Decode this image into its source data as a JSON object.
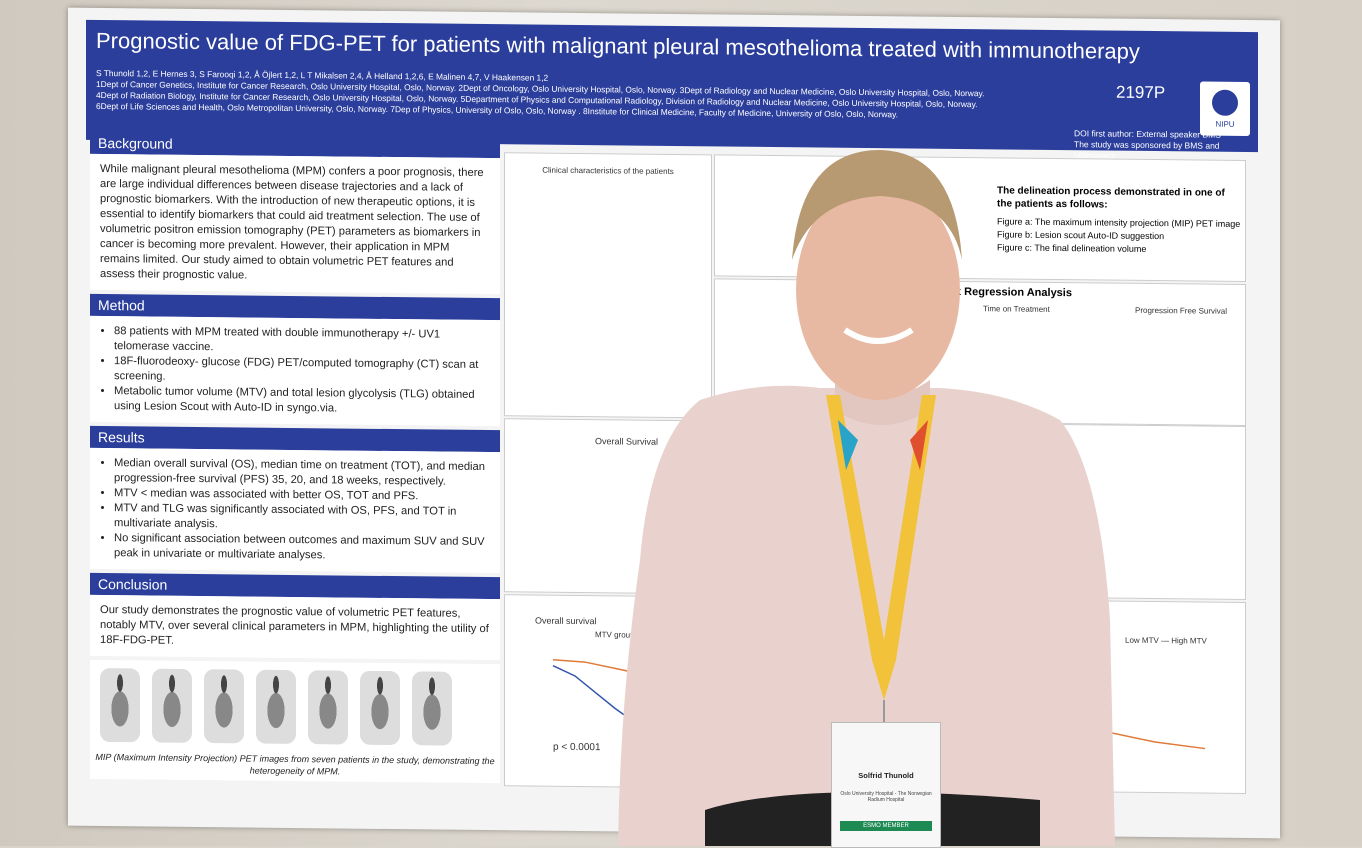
{
  "poster": {
    "title": "Prognostic value of FDG-PET for patients with malignant pleural mesothelioma treated with immunotherapy",
    "poster_id": "2197P",
    "logo_text": "NIPU",
    "authors": [
      "S Thunold 1,2, E Hernes 3, S Farooqi 1,2, Å Öjlert 1,2, L T Mikalsen 2,4, Å Helland 1,2,6, E Malinen 4,7, V Haakensen 1,2",
      "1Dept of Cancer Genetics, Institute for Cancer Research, Oslo University Hospital, Oslo, Norway. 2Dept of Oncology, Oslo University Hospital, Oslo, Norway. 3Dept of Radiology and Nuclear Medicine, Oslo University Hospital, Oslo, Norway.",
      "4Dept of Radiation Biology, Institute for Cancer Research, Oslo University Hospital, Oslo, Norway. 5Department of Physics and Computational Radiology, Division of Radiology and Nuclear Medicine, Oslo University Hospital, Oslo, Norway.",
      "6Dept of Life Sciences and Health, Oslo Metropolitan University, Oslo, Norway. 7Dep of Physics, University of Oslo, Oslo, Norway . 8Institute for Clinical Medicine, Faculty of Medicine, University of Oslo, Oslo, Norway."
    ],
    "doi_line1": "DOI first author: External speaker BMS",
    "doi_line2": "The study was sponsored by BMS and Ultimovacs",
    "background_heading": "Background",
    "background_text": "While malignant pleural mesothelioma (MPM) confers a poor prognosis, there are large individual differences between disease trajectories and a lack of prognostic biomarkers. With the introduction of new therapeutic options, it is essential to identify biomarkers that could aid treatment selection. The use of volumetric positron emission tomography (PET) parameters as biomarkers in cancer is becoming more prevalent. However, their application in MPM remains limited. Our study aimed to obtain volumetric PET features and assess their prognostic value.",
    "method_heading": "Method",
    "method_items": [
      "88 patients with MPM treated with double immunotherapy +/- UV1 telomerase vaccine.",
      "18F-fluorodeoxy- glucose (FDG) PET/computed tomography (CT) scan at screening.",
      "Metabolic tumor volume (MTV) and total lesion glycolysis (TLG) obtained using Lesion Scout with Auto-ID in syngo.via."
    ],
    "results_heading": "Results",
    "results_items": [
      "Median overall survival (OS), median time on treatment (TOT), and median progression-free survival (PFS) 35, 20, and 18 weeks, respectively.",
      "MTV < median was associated with better OS, TOT and PFS.",
      "MTV and TLG was significantly associated with OS, PFS, and TOT in multivariate analysis.",
      "No significant association between outcomes and maximum SUV and SUV peak in univariate or multivariate analyses."
    ],
    "conclusion_heading": "Conclusion",
    "conclusion_text": "Our study demonstrates the prognostic value of volumetric PET features, notably MTV, over several clinical parameters in MPM, highlighting the utility of 18F-FDG-PET.",
    "mip_caption": "MIP (Maximum Intensity Projection) PET images from seven patients in the study, demonstrating the heterogeneity of MPM.",
    "table_title": "Clinical characteristics of the patients",
    "delineation_title": "The delineation process demonstrated in one of the patients as follows:",
    "delineation_a": "Figure a: The maximum intensity projection (MIP) PET image",
    "delineation_b": "Figure b: Lesion scout Auto-ID suggestion",
    "delineation_c": "Figure c: The final delineation volume",
    "regression_title": "x Regression Analysis",
    "time_on_treatment": "Time on Treatment",
    "pfs_label": "Progression Free Survival",
    "os_forest_title": "Overall Survival",
    "km_title": "Overall survival",
    "km_pvalue": "p < 0.0001",
    "km_group": "MTV group",
    "km_legend": "Low MTV — High MTV"
  },
  "badge": {
    "name": "Solfrid Thunold",
    "org": "Oslo University Hospital - The Norwegian Radium Hospital",
    "member": "ESMO MEMBER"
  }
}
